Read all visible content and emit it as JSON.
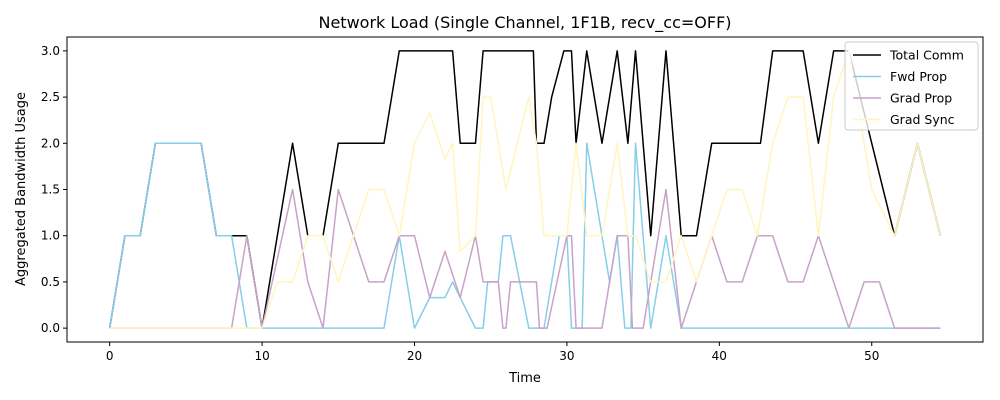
{
  "chart_data": {
    "type": "line",
    "title": "Network Load (Single Channel, 1F1B, recv_cc=OFF)",
    "xlabel": "Time",
    "ylabel": "Aggregated Bandwidth Usage",
    "xlim": [
      -2.8,
      57.3
    ],
    "ylim": [
      -0.15,
      3.15
    ],
    "xticks": [
      0,
      10,
      20,
      30,
      40,
      50
    ],
    "yticks": [
      0.0,
      0.5,
      1.0,
      1.5,
      2.0,
      2.5,
      3.0
    ],
    "ytick_labels": [
      "0.0",
      "0.5",
      "1.0",
      "1.5",
      "2.0",
      "2.5",
      "3.0"
    ],
    "grid": false,
    "legend": "top-right",
    "series": [
      {
        "name": "Total Comm",
        "color": "#000000",
        "points": [
          [
            0,
            0
          ],
          [
            1,
            1
          ],
          [
            2,
            1
          ],
          [
            3,
            2
          ],
          [
            6,
            2
          ],
          [
            7,
            1
          ],
          [
            9,
            1
          ],
          [
            10,
            0
          ],
          [
            12,
            2
          ],
          [
            13,
            1
          ],
          [
            14,
            1
          ],
          [
            15,
            2
          ],
          [
            18,
            2
          ],
          [
            19,
            3
          ],
          [
            22.5,
            3
          ],
          [
            23,
            2
          ],
          [
            24,
            2
          ],
          [
            24.5,
            3
          ],
          [
            27.8,
            3
          ],
          [
            28,
            2
          ],
          [
            28.5,
            2
          ],
          [
            29,
            2.5
          ],
          [
            29.8,
            3
          ],
          [
            30.3,
            3
          ],
          [
            30.6,
            2
          ],
          [
            31.3,
            3
          ],
          [
            32.3,
            2
          ],
          [
            33.3,
            3
          ],
          [
            34,
            2
          ],
          [
            34.5,
            3
          ],
          [
            35.5,
            1
          ],
          [
            36.5,
            3
          ],
          [
            37.5,
            1
          ],
          [
            38.5,
            1
          ],
          [
            39.5,
            2
          ],
          [
            42.7,
            2
          ],
          [
            43.5,
            3
          ],
          [
            45.5,
            3
          ],
          [
            46.5,
            2
          ],
          [
            47.5,
            3
          ],
          [
            48.5,
            3
          ],
          [
            51.5,
            1
          ],
          [
            53,
            2
          ],
          [
            54.5,
            1
          ]
        ]
      },
      {
        "name": "Fwd Prop",
        "color": "#87CEEB",
        "points": [
          [
            0,
            0
          ],
          [
            1,
            1
          ],
          [
            2,
            1
          ],
          [
            3,
            2
          ],
          [
            6,
            2
          ],
          [
            7,
            1
          ],
          [
            8,
            1
          ],
          [
            9,
            0
          ],
          [
            10,
            0
          ],
          [
            18,
            0
          ],
          [
            19,
            1
          ],
          [
            20,
            0
          ],
          [
            21,
            0.33
          ],
          [
            22,
            0.33
          ],
          [
            22.5,
            0.5
          ],
          [
            23,
            0.33
          ],
          [
            24,
            0
          ],
          [
            24.5,
            0
          ],
          [
            24.8,
            0.5
          ],
          [
            25.5,
            0.5
          ],
          [
            25.8,
            1
          ],
          [
            26.3,
            1
          ],
          [
            27.5,
            0
          ],
          [
            28,
            0
          ],
          [
            28.5,
            0
          ],
          [
            29,
            0.5
          ],
          [
            29.5,
            1
          ],
          [
            30,
            1
          ],
          [
            30.3,
            0
          ],
          [
            31,
            0
          ],
          [
            31.3,
            2
          ],
          [
            32.3,
            1
          ],
          [
            32.8,
            0.5
          ],
          [
            33.3,
            1
          ],
          [
            33.8,
            0
          ],
          [
            34.2,
            0
          ],
          [
            34.5,
            2
          ],
          [
            35.5,
            0
          ],
          [
            36,
            0.5
          ],
          [
            36.5,
            1
          ],
          [
            37.5,
            0
          ],
          [
            54.5,
            0
          ]
        ]
      },
      {
        "name": "Grad Prop",
        "color": "#C8A2C8",
        "points": [
          [
            0,
            0
          ],
          [
            8,
            0
          ],
          [
            9,
            1
          ],
          [
            10,
            0
          ],
          [
            12,
            1.5
          ],
          [
            13,
            0.5
          ],
          [
            14,
            0
          ],
          [
            15,
            1.5
          ],
          [
            17,
            0.5
          ],
          [
            18,
            0.5
          ],
          [
            19,
            1
          ],
          [
            19.5,
            1
          ],
          [
            20,
            1
          ],
          [
            21,
            0.33
          ],
          [
            22,
            0.83
          ],
          [
            23,
            0.33
          ],
          [
            24,
            1
          ],
          [
            24.5,
            0.5
          ],
          [
            25.5,
            0.5
          ],
          [
            25.8,
            0
          ],
          [
            26,
            0
          ],
          [
            26.3,
            0.5
          ],
          [
            28,
            0.5
          ],
          [
            28.2,
            0
          ],
          [
            28.7,
            0
          ],
          [
            30,
            1
          ],
          [
            30.3,
            1
          ],
          [
            30.6,
            0
          ],
          [
            32.3,
            0
          ],
          [
            33.3,
            1
          ],
          [
            34,
            1
          ],
          [
            34.3,
            0
          ],
          [
            35,
            0
          ],
          [
            36,
            1
          ],
          [
            36.5,
            1.5
          ],
          [
            37.5,
            0
          ],
          [
            38.5,
            0.5
          ],
          [
            39.5,
            1
          ],
          [
            40.5,
            0.5
          ],
          [
            41.5,
            0.5
          ],
          [
            42.5,
            1
          ],
          [
            43.5,
            1
          ],
          [
            44.5,
            0.5
          ],
          [
            45.5,
            0.5
          ],
          [
            46.5,
            1
          ],
          [
            48.5,
            0
          ],
          [
            49.5,
            0.5
          ],
          [
            50.5,
            0.5
          ],
          [
            51.5,
            0
          ],
          [
            54.5,
            0
          ]
        ]
      },
      {
        "name": "Grad Sync",
        "color": "#FFF5C0",
        "points": [
          [
            0,
            0
          ],
          [
            10,
            0
          ],
          [
            11,
            0.5
          ],
          [
            12,
            0.5
          ],
          [
            13,
            1.0
          ],
          [
            14,
            1.0
          ],
          [
            15,
            0.5
          ],
          [
            17,
            1.5
          ],
          [
            18,
            1.5
          ],
          [
            19,
            1.0
          ],
          [
            20,
            2.0
          ],
          [
            21,
            2.33
          ],
          [
            22,
            1.83
          ],
          [
            22.5,
            2.0
          ],
          [
            23,
            0.83
          ],
          [
            24,
            1.0
          ],
          [
            24.5,
            2.5
          ],
          [
            25,
            2.5
          ],
          [
            26,
            1.5
          ],
          [
            27.5,
            2.5
          ],
          [
            28,
            2.0
          ],
          [
            28.5,
            1.0
          ],
          [
            30,
            1.0
          ],
          [
            30.6,
            2.0
          ],
          [
            31.3,
            1.0
          ],
          [
            32.3,
            1.0
          ],
          [
            33.3,
            2.0
          ],
          [
            34,
            1.0
          ],
          [
            34.5,
            1.0
          ],
          [
            35.5,
            0.5
          ],
          [
            36.5,
            0.5
          ],
          [
            37.5,
            1.0
          ],
          [
            38.5,
            0.5
          ],
          [
            39.5,
            1.0
          ],
          [
            40.5,
            1.5
          ],
          [
            41.5,
            1.5
          ],
          [
            42.5,
            1.0
          ],
          [
            43.5,
            2.0
          ],
          [
            44.5,
            2.5
          ],
          [
            45.5,
            2.5
          ],
          [
            46.5,
            1.0
          ],
          [
            47.5,
            2.5
          ],
          [
            48.5,
            3.0
          ],
          [
            50,
            1.5
          ],
          [
            51.5,
            1.0
          ],
          [
            53,
            2.0
          ],
          [
            54.5,
            1.0
          ]
        ]
      }
    ]
  }
}
